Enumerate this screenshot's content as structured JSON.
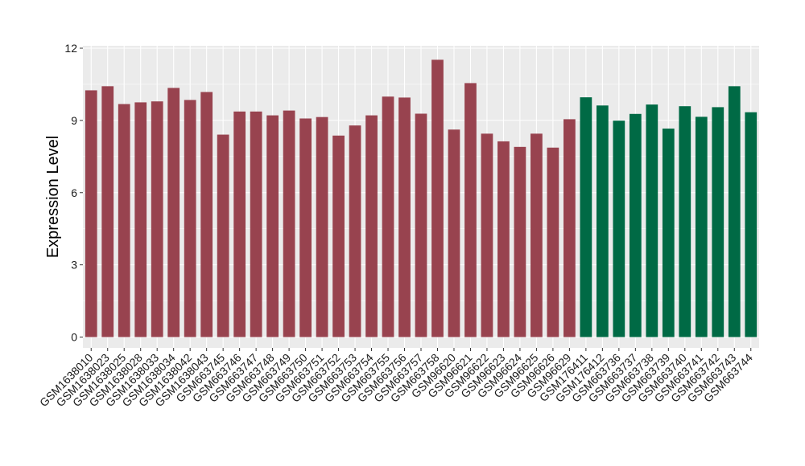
{
  "chart_data": {
    "type": "bar",
    "title": "",
    "xlabel": "",
    "ylabel": "Expression Level",
    "ylim": [
      -0.45,
      12.1
    ],
    "yticks": [
      0,
      3,
      6,
      9,
      12
    ],
    "grid": true,
    "legend": "none",
    "colors": {
      "group1": "#98434f",
      "group2": "#006a45",
      "panel": "#ebebeb",
      "gridline": "#ffffff"
    },
    "categories": [
      "GSM1638010",
      "GSM1638023",
      "GSM1638025",
      "GSM1638028",
      "GSM1638033",
      "GSM1638034",
      "GSM1638042",
      "GSM1638043",
      "GSM663745",
      "GSM663746",
      "GSM663747",
      "GSM663748",
      "GSM663749",
      "GSM663750",
      "GSM663751",
      "GSM663752",
      "GSM663753",
      "GSM663754",
      "GSM663755",
      "GSM663756",
      "GSM663757",
      "GSM663758",
      "GSM96620",
      "GSM96621",
      "GSM96622",
      "GSM96623",
      "GSM96624",
      "GSM96625",
      "GSM96626",
      "GSM96629",
      "GSM176411",
      "GSM176412",
      "GSM663736",
      "GSM663737",
      "GSM663738",
      "GSM663739",
      "GSM663740",
      "GSM663741",
      "GSM663742",
      "GSM663743",
      "GSM663744"
    ],
    "values": [
      10.25,
      10.42,
      9.68,
      9.75,
      9.79,
      10.35,
      9.85,
      10.18,
      8.41,
      9.37,
      9.37,
      9.21,
      9.41,
      9.08,
      9.14,
      8.37,
      8.79,
      9.21,
      9.99,
      9.95,
      9.28,
      11.52,
      8.62,
      10.55,
      8.45,
      8.13,
      7.9,
      8.45,
      7.87,
      9.05,
      9.96,
      9.62,
      8.99,
      9.27,
      9.66,
      8.66,
      9.59,
      9.15,
      9.55,
      10.42,
      9.34
    ],
    "groups": [
      "group1",
      "group1",
      "group1",
      "group1",
      "group1",
      "group1",
      "group1",
      "group1",
      "group1",
      "group1",
      "group1",
      "group1",
      "group1",
      "group1",
      "group1",
      "group1",
      "group1",
      "group1",
      "group1",
      "group1",
      "group1",
      "group1",
      "group1",
      "group1",
      "group1",
      "group1",
      "group1",
      "group1",
      "group1",
      "group1",
      "group2",
      "group2",
      "group2",
      "group2",
      "group2",
      "group2",
      "group2",
      "group2",
      "group2",
      "group2",
      "group2"
    ]
  }
}
